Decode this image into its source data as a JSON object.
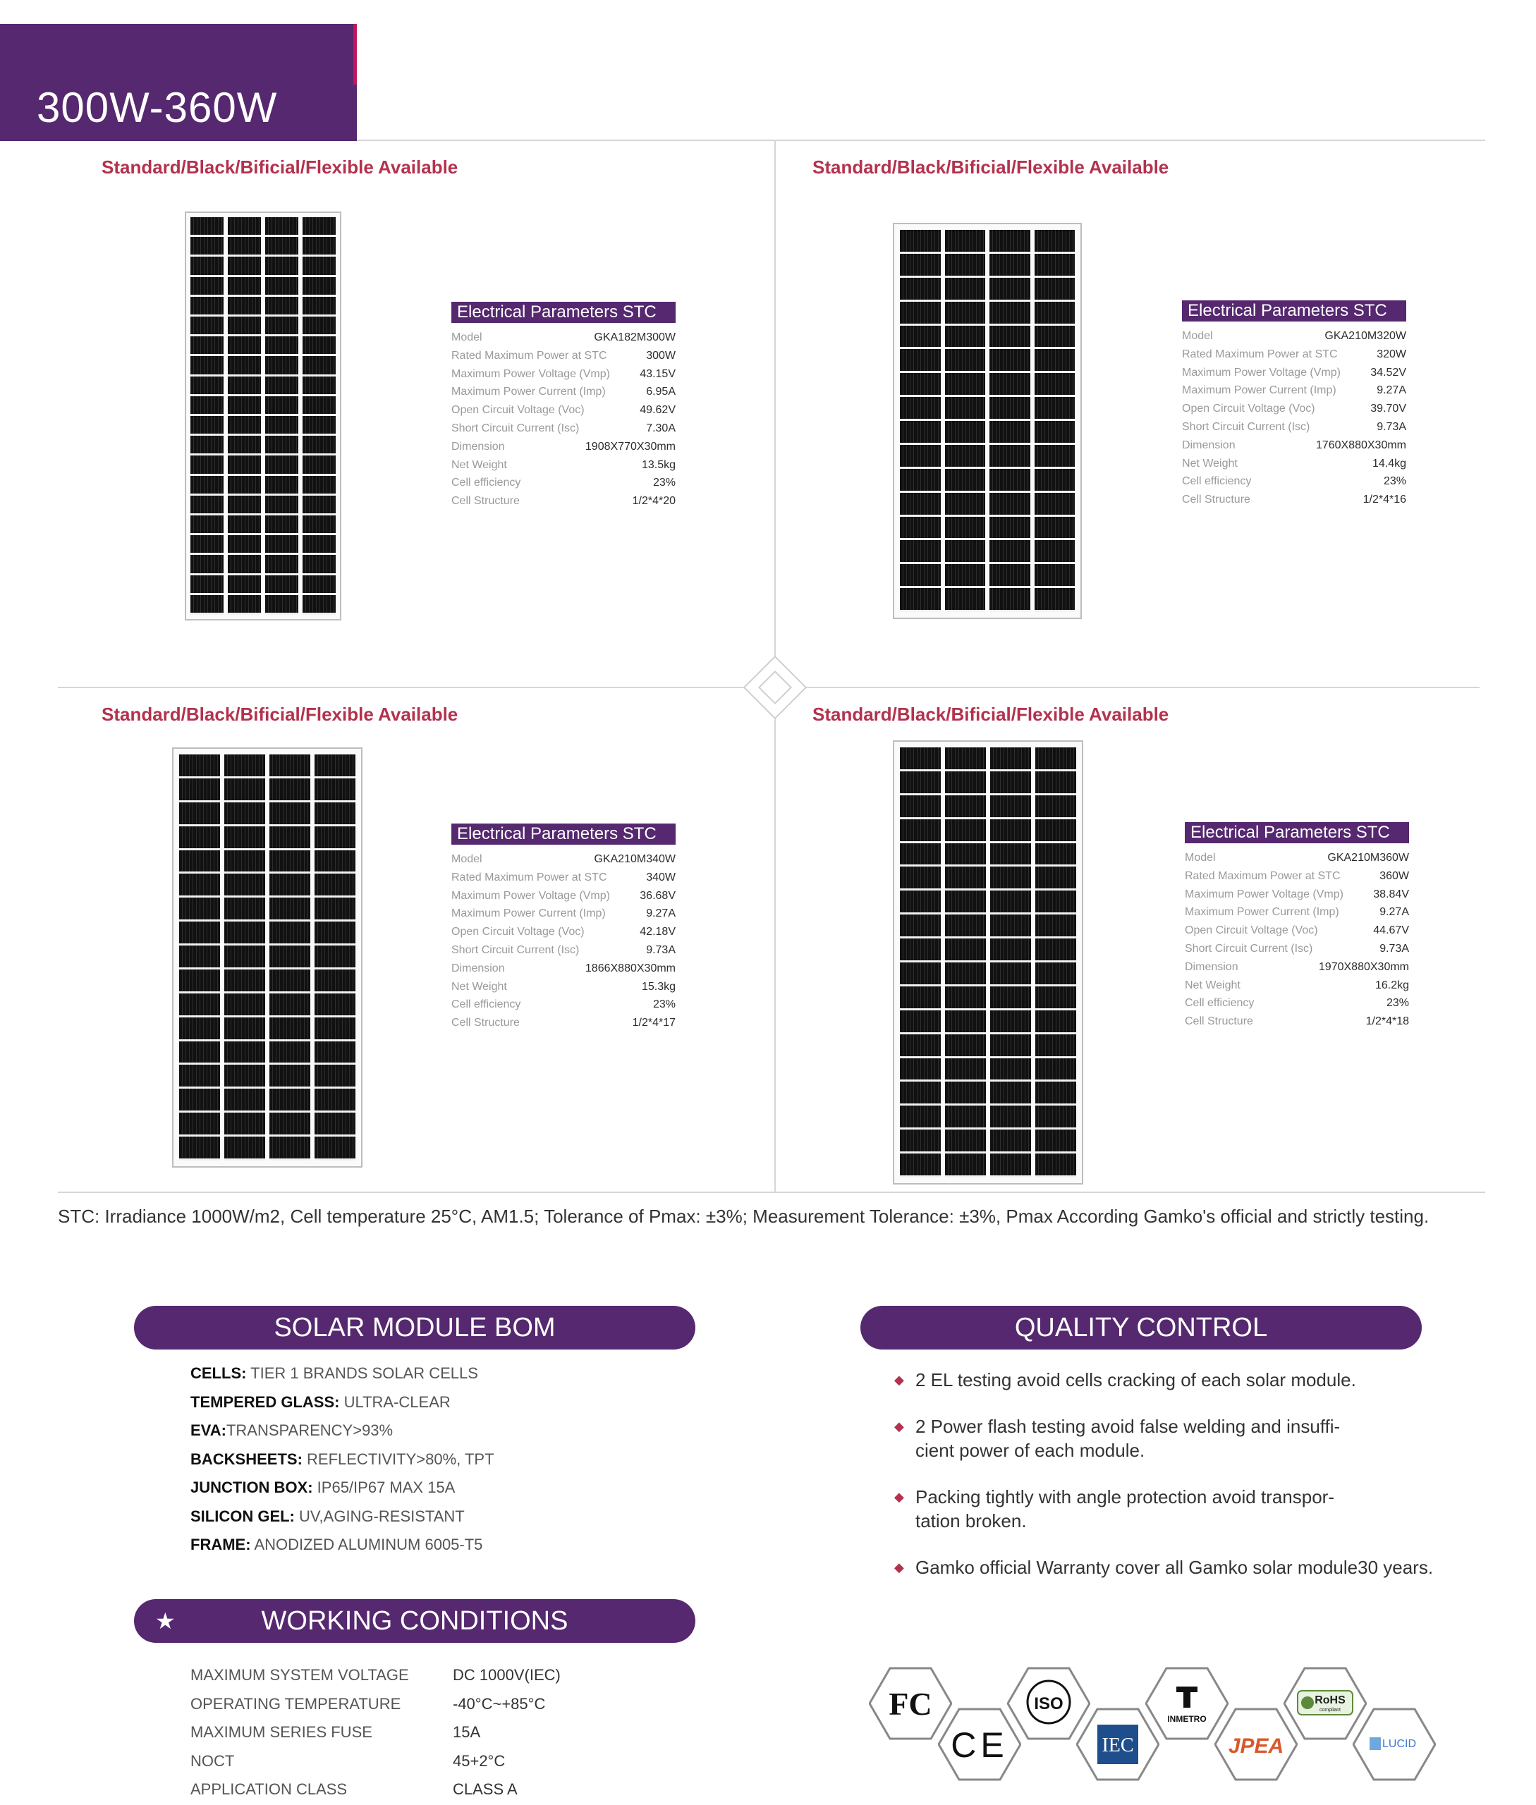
{
  "header": {
    "title": "300W-360W"
  },
  "availability_label": "Standard/Black/Bificial/Flexible Available",
  "params_title": "Electrical Parameters STC",
  "param_labels": [
    "Model",
    "Rated Maximum Power at STC",
    "Maximum Power Voltage (Vmp)",
    "Maximum Power Current (Imp)",
    "Open Circuit Voltage (Voc)",
    "Short Circuit Current (Isc)",
    "Dimension",
    "Net Weight",
    "Cell efficiency",
    "Cell Structure"
  ],
  "modules": [
    {
      "values": [
        "GKA182M300W",
        "300W",
        "43.15V",
        "6.95A",
        "49.62V",
        "7.30A",
        "1908X770X30mm",
        "13.5kg",
        "23%",
        "1/2*4*20"
      ]
    },
    {
      "values": [
        "GKA210M320W",
        "320W",
        "34.52V",
        "9.27A",
        "39.70V",
        "9.73A",
        "1760X880X30mm",
        "14.4kg",
        "23%",
        "1/2*4*16"
      ]
    },
    {
      "values": [
        "GKA210M340W",
        "340W",
        "36.68V",
        "9.27A",
        "42.18V",
        "9.73A",
        "1866X880X30mm",
        "15.3kg",
        "23%",
        "1/2*4*17"
      ]
    },
    {
      "values": [
        "GKA210M360W",
        "360W",
        "38.84V",
        "9.27A",
        "44.67V",
        "9.73A",
        "1970X880X30mm",
        "16.2kg",
        "23%",
        "1/2*4*18"
      ]
    }
  ],
  "stc_note": "STC: Irradiance 1000W/m2, Cell temperature 25°C, AM1.5; Tolerance of Pmax: ±3%; Measurement Tolerance: ±3%, Pmax According Gamko's official and strictly testing.",
  "bom": {
    "title": "SOLAR MODULE BOM",
    "items": [
      {
        "key": "CELLS:",
        "value": " TIER 1 BRANDS SOLAR CELLS"
      },
      {
        "key": "TEMPERED GLASS:",
        "value": " ULTRA-CLEAR"
      },
      {
        "key": "EVA:",
        "value": "TRANSPARENCY>93%"
      },
      {
        "key": "BACKSHEETS:",
        "value": " REFLECTIVITY>80%, TPT"
      },
      {
        "key": "JUNCTION BOX:",
        "value": " IP65/IP67 MAX 15A"
      },
      {
        "key": "SILICON GEL:",
        "value": " UV,AGING-RESISTANT"
      },
      {
        "key": "FRAME:",
        "value": " ANODIZED ALUMINUM 6005-T5"
      }
    ]
  },
  "quality": {
    "title": "QUALITY CONTROL",
    "items": [
      "2 EL testing avoid cells cracking of each solar module.",
      "2 Power flash testing avoid false welding and insuffi-\ncient power of each module.",
      "Packing tightly with angle protection avoid transpor-\ntation broken.",
      "Gamko official Warranty cover all Gamko solar module30 years."
    ]
  },
  "working": {
    "title": "WORKING CONDITIONS",
    "items": [
      {
        "key": "MAXIMUM SYSTEM VOLTAGE",
        "value": "DC 1000V(IEC)"
      },
      {
        "key": "OPERATING TEMPERATURE",
        "value": "-40°C~+85°C"
      },
      {
        "key": "MAXIMUM SERIES FUSE",
        "value": "15A"
      },
      {
        "key": "NOCT",
        "value": "45+2°C"
      },
      {
        "key": "APPLICATION CLASS",
        "value": "CLASS A"
      }
    ]
  },
  "certifications": {
    "fc": "FC",
    "ce": "CE",
    "iso": "ISO",
    "iec": "IEC",
    "inmetro": "INMETRO",
    "jpea": "JPEA",
    "rohs": "RoHS",
    "rohs_sub": "compliant",
    "lucid": "LUCID"
  },
  "colors": {
    "brand_purple": "#55286f",
    "accent_red": "#b3324e"
  },
  "icons": [
    "star-icon",
    "diamond-bullet-icon",
    "diamond-ornament-icon"
  ]
}
